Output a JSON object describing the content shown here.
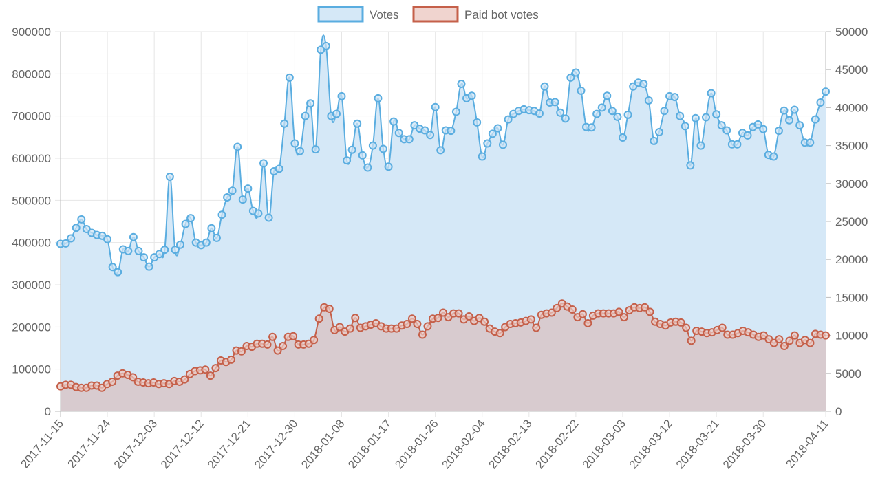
{
  "chart_data": {
    "type": "line",
    "filled_area": true,
    "x_tick_labels": [
      "2017-11-15",
      "2017-11-24",
      "2017-12-03",
      "2017-12-12",
      "2017-12-21",
      "2017-12-30",
      "2018-01-08",
      "2018-01-17",
      "2018-01-26",
      "2018-02-04",
      "2018-02-13",
      "2018-02-22",
      "2018-03-03",
      "2018-03-12",
      "2018-03-21",
      "2018-03-30",
      "2018-04-11"
    ],
    "x_range": [
      "2017-11-15",
      "2018-04-11"
    ],
    "y_left": {
      "min": 0,
      "max": 900000,
      "step": 100000,
      "ticks": [
        "0",
        "100000",
        "200000",
        "300000",
        "400000",
        "500000",
        "600000",
        "700000",
        "800000",
        "900000"
      ]
    },
    "y_right": {
      "min": 0,
      "max": 50000,
      "step": 5000,
      "ticks": [
        "0",
        "5000",
        "10000",
        "15000",
        "20000",
        "25000",
        "30000",
        "35000",
        "40000",
        "45000",
        "50000"
      ]
    },
    "grid": true,
    "legend_position": "top",
    "series": [
      {
        "name": "Votes",
        "axis": "left",
        "color": "#5aade0",
        "fill": "#d5e8f7",
        "values": [
          397000,
          398000,
          410000,
          435000,
          455000,
          432000,
          423000,
          418000,
          416000,
          408000,
          342000,
          330000,
          384000,
          380000,
          413000,
          380000,
          365000,
          343000,
          365000,
          373000,
          383000,
          556000,
          383000,
          395000,
          444000,
          458000,
          400000,
          394000,
          400000,
          434000,
          411000,
          466000,
          507000,
          523000,
          627000,
          502000,
          528000,
          475000,
          469000,
          588000,
          459000,
          569000,
          575000,
          682000,
          791000,
          635000,
          617000,
          700000,
          730000,
          621000,
          857000,
          866000,
          700000,
          705000,
          747000,
          595000,
          620000,
          682000,
          607000,
          578000,
          630000,
          742000,
          622000,
          580000,
          687000,
          660000,
          645000,
          645000,
          678000,
          670000,
          666000,
          655000,
          721000,
          619000,
          666000,
          665000,
          710000,
          776000,
          742000,
          748000,
          685000,
          604000,
          635000,
          658000,
          671000,
          632000,
          692000,
          705000,
          712000,
          716000,
          714000,
          712000,
          706000,
          770000,
          732000,
          733000,
          708000,
          694000,
          791000,
          803000,
          760000,
          674000,
          673000,
          705000,
          720000,
          748000,
          712000,
          698000,
          649000,
          703000,
          770000,
          779000,
          776000,
          737000,
          641000,
          662000,
          712000,
          747000,
          745000,
          700000,
          676000,
          583000,
          695000,
          630000,
          697000,
          754000,
          704000,
          678000,
          666000,
          633000,
          633000,
          660000,
          654000,
          674000,
          680000,
          669000,
          608000,
          604000,
          665000,
          713000,
          690000,
          715000,
          678000,
          637000,
          637000,
          692000,
          732000,
          758000
        ]
      },
      {
        "name": "Paid bot votes",
        "axis": "right",
        "color": "#c5604a",
        "fill": "#d8c5c8",
        "values": [
          3300,
          3500,
          3500,
          3200,
          3100,
          3100,
          3400,
          3400,
          3100,
          3600,
          3900,
          4700,
          5000,
          4800,
          4500,
          3900,
          3800,
          3700,
          3800,
          3600,
          3700,
          3600,
          4000,
          3900,
          4200,
          4900,
          5300,
          5400,
          5500,
          4700,
          5700,
          6700,
          6500,
          6800,
          8000,
          7900,
          8600,
          8500,
          8900,
          8900,
          8800,
          9800,
          8000,
          8600,
          9800,
          9900,
          8800,
          8800,
          8900,
          9400,
          12200,
          13700,
          13500,
          10700,
          11100,
          10500,
          10900,
          12300,
          11000,
          11200,
          11400,
          11600,
          11200,
          10900,
          10900,
          10900,
          11300,
          11500,
          12200,
          11500,
          10100,
          11200,
          12200,
          12300,
          13000,
          12400,
          12900,
          12900,
          12100,
          12500,
          11900,
          12300,
          11800,
          10900,
          10500,
          10300,
          11100,
          11500,
          11600,
          11700,
          11900,
          12100,
          11000,
          12700,
          12900,
          13000,
          13600,
          14200,
          13800,
          13400,
          12400,
          12800,
          11600,
          12600,
          12900,
          12900,
          12900,
          12900,
          13100,
          12400,
          13300,
          13700,
          13600,
          13700,
          13100,
          11800,
          11500,
          11300,
          11700,
          11800,
          11700,
          11000,
          9300,
          10600,
          10500,
          10300,
          10400,
          10700,
          11000,
          10100,
          10100,
          10300,
          10600,
          10400,
          10100,
          9800,
          10000,
          9500,
          9000,
          9500,
          8600,
          9300,
          10000,
          9000,
          9400,
          9000,
          10200,
          10100,
          10000
        ]
      }
    ]
  }
}
